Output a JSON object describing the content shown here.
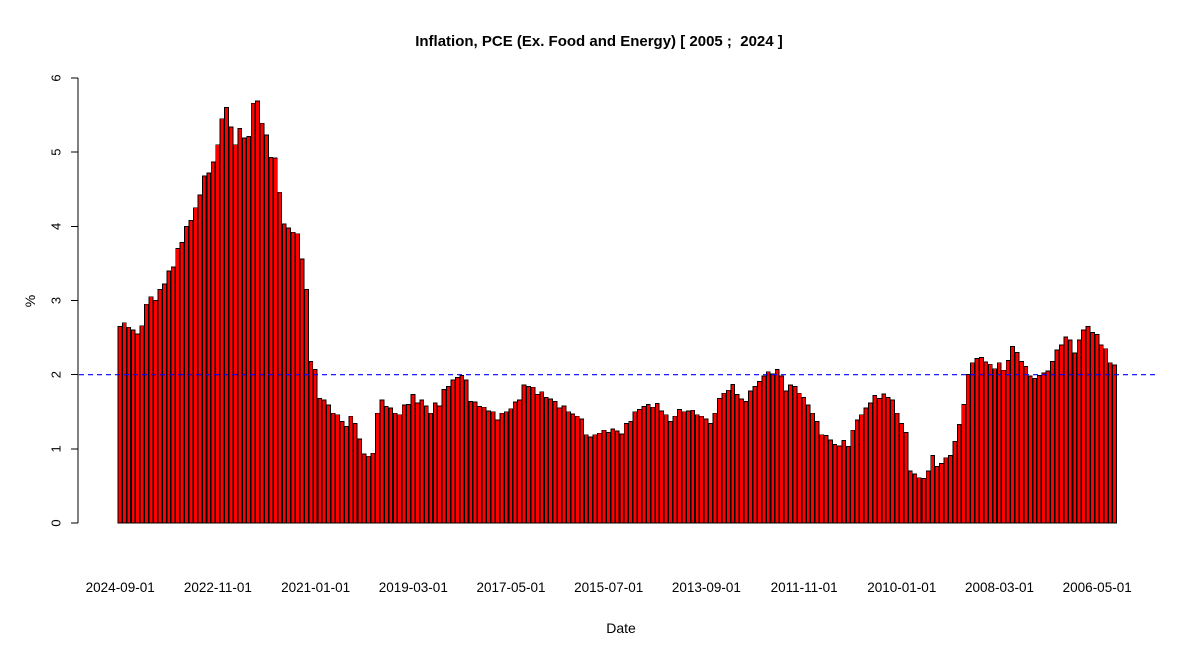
{
  "chart_data": {
    "type": "bar",
    "title": "Inflation, PCE (Ex. Food and Energy) [ 2005 ;  2024 ]",
    "xlabel": "Date",
    "ylabel": "%",
    "ylim": [
      0,
      6
    ],
    "yticks": [
      0,
      1,
      2,
      3,
      4,
      5,
      6
    ],
    "grid": false,
    "legend": "none",
    "bar_color": "#FF0000",
    "bar_border_color": "#000000",
    "reference_line": {
      "value": 2,
      "color": "#0000FF",
      "style": "dashed"
    },
    "x_order": "monthly, newest (left) to oldest (right)",
    "x_tick_every": 22,
    "x_tick_labels": [
      "2024-09-01",
      "2022-11-01",
      "2021-01-01",
      "2019-03-01",
      "2017-05-01",
      "2015-07-01",
      "2013-09-01",
      "2011-11-01",
      "2010-01-01",
      "2008-03-01",
      "2006-05-01"
    ],
    "values": [
      2.65,
      2.7,
      2.64,
      2.6,
      2.55,
      2.66,
      2.95,
      3.05,
      3.0,
      3.15,
      3.22,
      3.4,
      3.45,
      3.7,
      3.78,
      4.0,
      4.08,
      4.25,
      4.42,
      4.68,
      4.72,
      4.87,
      5.1,
      5.45,
      5.6,
      5.34,
      5.1,
      5.32,
      5.19,
      5.21,
      5.66,
      5.69,
      5.39,
      5.23,
      4.93,
      4.92,
      4.46,
      4.03,
      3.98,
      3.92,
      3.9,
      3.56,
      3.15,
      2.18,
      2.07,
      1.68,
      1.66,
      1.59,
      1.48,
      1.46,
      1.37,
      1.3,
      1.44,
      1.34,
      1.13,
      0.93,
      0.9,
      0.94,
      1.48,
      1.66,
      1.57,
      1.55,
      1.48,
      1.46,
      1.59,
      1.6,
      1.73,
      1.62,
      1.66,
      1.58,
      1.48,
      1.62,
      1.58,
      1.8,
      1.84,
      1.93,
      1.96,
      1.99,
      1.93,
      1.64,
      1.63,
      1.57,
      1.56,
      1.51,
      1.5,
      1.39,
      1.48,
      1.5,
      1.54,
      1.63,
      1.66,
      1.86,
      1.84,
      1.83,
      1.73,
      1.77,
      1.69,
      1.67,
      1.64,
      1.55,
      1.58,
      1.5,
      1.47,
      1.44,
      1.4,
      1.19,
      1.16,
      1.19,
      1.21,
      1.25,
      1.22,
      1.27,
      1.24,
      1.2,
      1.34,
      1.37,
      1.5,
      1.53,
      1.57,
      1.6,
      1.56,
      1.61,
      1.51,
      1.46,
      1.37,
      1.44,
      1.53,
      1.5,
      1.51,
      1.52,
      1.46,
      1.44,
      1.4,
      1.34,
      1.48,
      1.68,
      1.75,
      1.79,
      1.87,
      1.73,
      1.67,
      1.64,
      1.78,
      1.84,
      1.91,
      1.98,
      2.04,
      2.01,
      2.07,
      1.98,
      1.78,
      1.86,
      1.84,
      1.75,
      1.69,
      1.59,
      1.48,
      1.37,
      1.19,
      1.18,
      1.12,
      1.06,
      1.04,
      1.11,
      1.03,
      1.25,
      1.39,
      1.46,
      1.55,
      1.62,
      1.72,
      1.68,
      1.74,
      1.69,
      1.66,
      1.48,
      1.34,
      1.22,
      0.7,
      0.66,
      0.61,
      0.6,
      0.7,
      0.91,
      0.76,
      0.8,
      0.88,
      0.91,
      1.1,
      1.33,
      1.6,
      2.0,
      2.16,
      2.22,
      2.23,
      2.17,
      2.14,
      2.08,
      2.16,
      2.06,
      2.19,
      2.38,
      2.3,
      2.18,
      2.11,
      1.98,
      1.95,
      1.99,
      2.02,
      2.05,
      2.18,
      2.33,
      2.4,
      2.51,
      2.47,
      2.29,
      2.47,
      2.6,
      2.65,
      2.57,
      2.54,
      2.4,
      2.35,
      2.16,
      2.13
    ]
  }
}
